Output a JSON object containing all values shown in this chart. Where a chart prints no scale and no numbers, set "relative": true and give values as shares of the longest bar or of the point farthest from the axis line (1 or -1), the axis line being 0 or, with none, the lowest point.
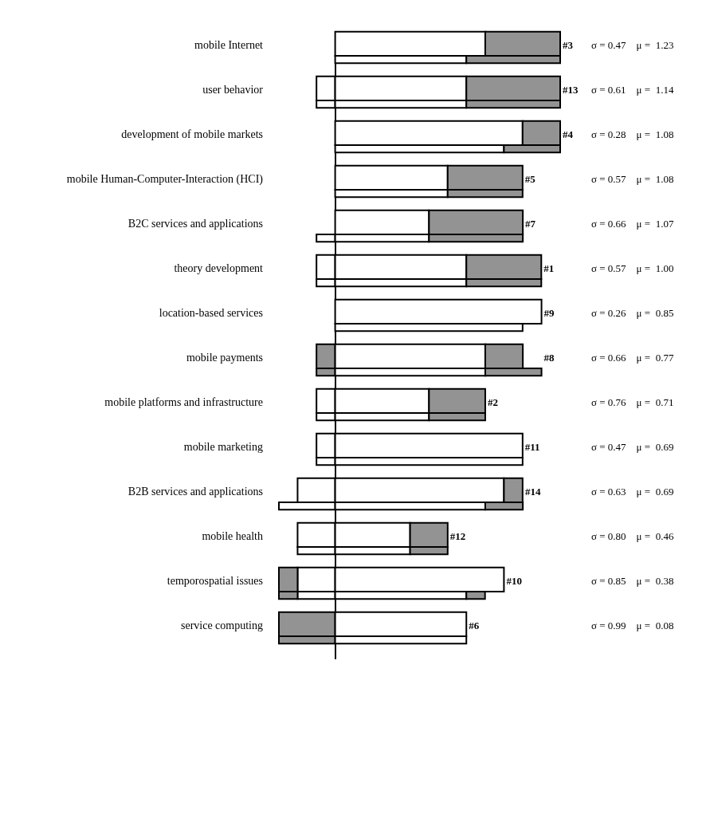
{
  "chart_data": {
    "type": "bar",
    "orientation": "horizontal",
    "stacked": true,
    "relative": true,
    "categories": [
      "mobile Internet",
      null,
      "user behavior",
      null,
      "development of mobile markets",
      null,
      "mobile Human-Computer-Interaction (HCI)",
      null,
      "B2C services and applications",
      null,
      "theory development",
      null,
      "location-based services",
      null,
      "mobile payments",
      null,
      "mobile platforms and infrastructure",
      null,
      "mobile marketing",
      null,
      "B2B services and applications",
      null,
      "mobile health",
      null,
      "temporospatial issues",
      null,
      "service computing",
      null
    ],
    "series": [
      {
        "colors": [
          null,
          null,
          "#ffffff",
          "#ffffff",
          null,
          null,
          null,
          null,
          null,
          "#ffffff",
          "#ffffff",
          "#ffffff",
          null,
          null,
          "#939393",
          "#939393",
          "#ffffff",
          "#ffffff",
          "#ffffff",
          "#ffffff",
          "#ffffff",
          "#ffffff",
          "#ffffff",
          "#ffffff",
          "#ffffff",
          "#ffffff",
          "#939393",
          "#939393"
        ],
        "values": [
          null,
          null,
          -0.083,
          -0.083,
          null,
          null,
          null,
          null,
          null,
          -0.083,
          -0.083,
          -0.083,
          null,
          null,
          -0.083,
          -0.083,
          -0.083,
          -0.083,
          -0.083,
          -0.083,
          -0.167,
          -0.25,
          -0.167,
          -0.167,
          -0.167,
          -0.167,
          -0.25,
          -0.25
        ]
      },
      {
        "color": "#939393",
        "values": [
          null,
          null,
          null,
          null,
          null,
          null,
          null,
          null,
          null,
          null,
          null,
          null,
          null,
          null,
          null,
          null,
          null,
          null,
          null,
          null,
          null,
          null,
          null,
          null,
          -0.083,
          -0.083,
          null,
          null
        ]
      },
      {
        "color": "#ffffff",
        "values": [
          0.667,
          0.583,
          0.583,
          0.583,
          0.833,
          0.75,
          0.5,
          0.5,
          0.417,
          0.417,
          0.583,
          0.583,
          0.917,
          0.833,
          0.667,
          0.667,
          0.417,
          0.417,
          0.833,
          0.833,
          0.75,
          0.667,
          0.333,
          0.333,
          0.75,
          0.583,
          0.583,
          0.583
        ],
        "type": "bar"
      },
      {
        "color": "#939393",
        "values": [
          0.333,
          0.417,
          0.417,
          0.417,
          0.167,
          0.25,
          0.333,
          0.333,
          0.417,
          0.417,
          0.333,
          0.333,
          null,
          null,
          0.167,
          0.25,
          0.25,
          0.25,
          null,
          null,
          0.083,
          0.167,
          0.167,
          0.167,
          null,
          0.083,
          null,
          null
        ],
        "type": "bar"
      }
    ],
    "annotations": [
      "#3",
      "#13",
      "#4",
      "#5",
      "#7",
      "#1",
      "#9",
      "#8",
      "#2",
      "#11",
      "#14",
      "#12",
      "#10",
      "#6",
      "σ = 0.47    μ =  1.23",
      "σ = 0.61    μ =  1.14",
      "σ = 0.28    μ =  1.08",
      "σ = 0.57    μ =  1.08",
      "σ = 0.66    μ =  1.07",
      "σ = 0.57    μ =  1.00",
      "σ = 0.26    μ =  0.85",
      "σ = 0.66    μ =  0.77",
      "σ = 0.76    μ =  0.71",
      "σ = 0.47    μ =  0.69",
      "σ = 0.63    μ =  0.69",
      "σ = 0.80    μ =  0.46",
      "σ = 0.85    μ =  0.38",
      "σ = 0.99    μ =  0.08"
    ]
  }
}
